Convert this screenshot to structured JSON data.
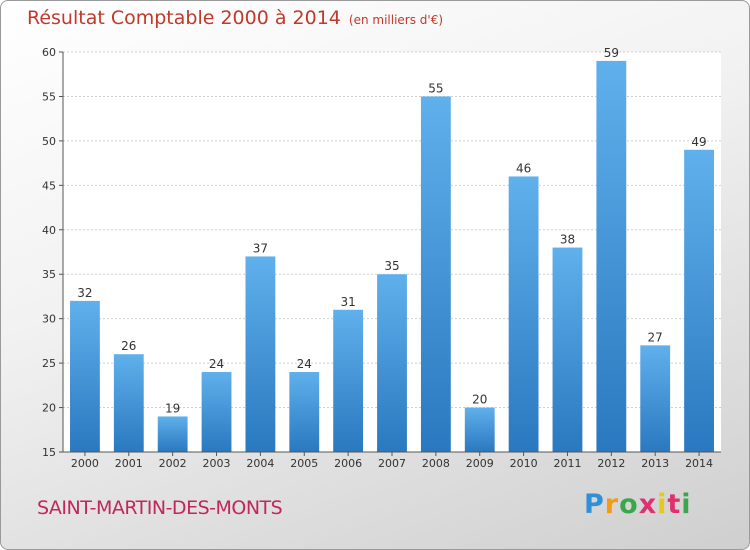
{
  "header": {
    "title": "Résultat Comptable 2000 à 2014",
    "subtitle": "(en milliers d'€)"
  },
  "commune": "SAINT-MARTIN-DES-MONTS",
  "brand": {
    "letters": [
      "P",
      "r",
      "o",
      "x",
      "i",
      "t",
      "i"
    ],
    "colors": [
      "#2f8fd8",
      "#f39c12",
      "#3aa84a",
      "#e0306e",
      "#e8c81a",
      "#e0306e",
      "#3aa84a"
    ]
  },
  "colors": {
    "bar": "#4a9de0",
    "bar_light": "#60b0ec",
    "bar_dark": "#2a78bf"
  },
  "chart_data": {
    "type": "bar",
    "title": "Résultat Comptable 2000 à 2014",
    "subtitle": "(en milliers d'€)",
    "categories": [
      "2000",
      "2001",
      "2002",
      "2003",
      "2004",
      "2005",
      "2006",
      "2007",
      "2008",
      "2009",
      "2010",
      "2011",
      "2012",
      "2013",
      "2014"
    ],
    "values": [
      32,
      26,
      19,
      24,
      37,
      24,
      31,
      35,
      55,
      20,
      46,
      38,
      59,
      27,
      49
    ],
    "ylim": [
      15,
      60
    ],
    "yticks": [
      15,
      20,
      25,
      30,
      35,
      40,
      45,
      50,
      55,
      60
    ],
    "grid": true,
    "xlabel": "",
    "ylabel": ""
  }
}
